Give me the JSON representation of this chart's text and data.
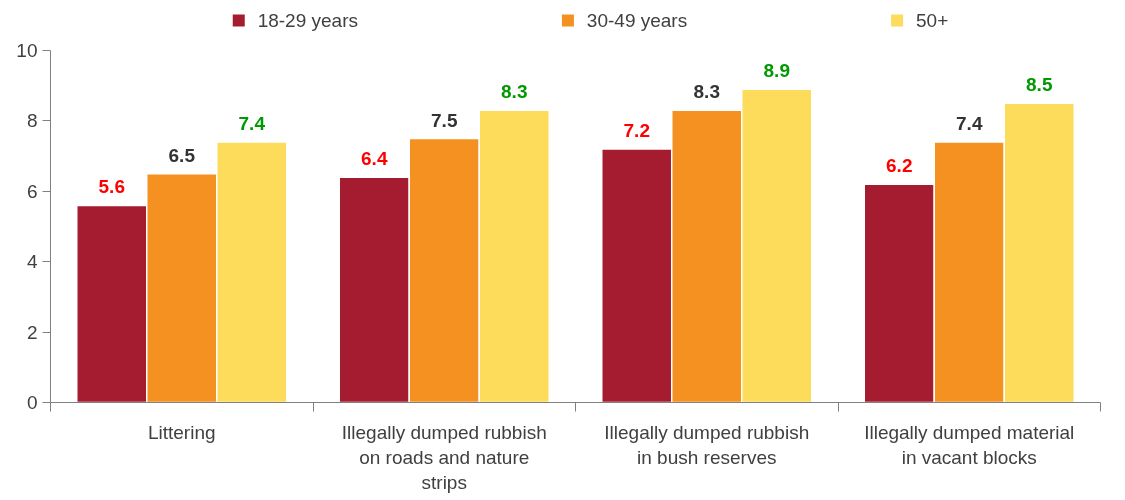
{
  "chart_data": {
    "type": "bar",
    "categories": [
      "Littering",
      "Illegally dumped rubbish on roads and nature strips",
      "Illegally dumped rubbish in bush reserves",
      "Illegally dumped material in vacant blocks"
    ],
    "series": [
      {
        "name": "18-29 years",
        "color": "#a51c30",
        "values": [
          5.6,
          6.4,
          7.2,
          6.2
        ]
      },
      {
        "name": "30-49 years",
        "color": "#f59121",
        "values": [
          6.5,
          7.5,
          8.3,
          7.4
        ]
      },
      {
        "name": "50+",
        "color": "#fcdc5a",
        "values": [
          7.4,
          8.3,
          8.9,
          8.5
        ]
      }
    ],
    "ylim": [
      0,
      10
    ],
    "yticks": [
      0,
      2,
      4,
      6,
      8,
      10
    ],
    "data_labels": true,
    "grid": false,
    "legend": "top"
  }
}
